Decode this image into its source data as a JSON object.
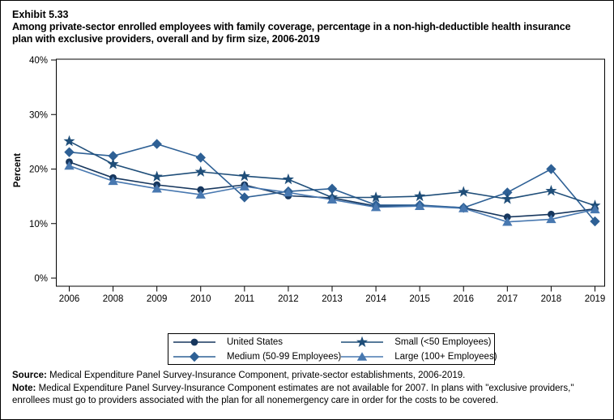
{
  "title": {
    "exhibit": "Exhibit 5.33",
    "text": "Among private-sector enrolled employees with family coverage, percentage in a non-high-deductible health insurance plan with exclusive providers, overall and by firm size, 2006-2019"
  },
  "chart_data": {
    "type": "line",
    "title": "Exhibit 5.33",
    "subtitle": "Among private-sector enrolled employees with family coverage, percentage in a non-high-deductible health insurance plan with exclusive providers, overall and by firm size, 2006-2019",
    "xlabel": "",
    "ylabel": "Percent",
    "ylim": [
      0,
      40
    ],
    "yticks": [
      0,
      10,
      20,
      30,
      40
    ],
    "ytick_suffix": "%",
    "grid": false,
    "legend_position": "bottom",
    "categories": [
      "2006",
      "2008",
      "2009",
      "2010",
      "2011",
      "2012",
      "2013",
      "2014",
      "2015",
      "2016",
      "2017",
      "2018",
      "2019"
    ],
    "series": [
      {
        "name": "United States",
        "marker": "circle",
        "color": "#17375E",
        "values": [
          21.3,
          18.4,
          17.1,
          16.2,
          17.1,
          15.1,
          14.7,
          13.2,
          13.3,
          12.9,
          11.2,
          11.7,
          12.7
        ]
      },
      {
        "name": "Medium (50-99 Employees)",
        "marker": "diamond",
        "color": "#2E6095",
        "values": [
          23.1,
          22.4,
          24.6,
          22.1,
          14.8,
          15.9,
          16.4,
          13.4,
          13.4,
          12.9,
          15.7,
          20.0,
          10.4
        ]
      },
      {
        "name": "Small (<50 Employees)",
        "marker": "star",
        "color": "#1F4E79",
        "values": [
          25.1,
          20.9,
          18.6,
          19.5,
          18.7,
          18.1,
          14.8,
          14.8,
          15.0,
          15.8,
          14.5,
          16.0,
          13.3
        ]
      },
      {
        "name": "Large (100+ Employees)",
        "marker": "triangle",
        "color": "#4878B0",
        "values": [
          20.6,
          17.8,
          16.4,
          15.3,
          16.8,
          15.7,
          14.4,
          13.0,
          13.2,
          12.8,
          10.3,
          10.8,
          12.6
        ]
      }
    ],
    "legend_order": [
      "United States",
      "Small (<50 Employees)",
      "Medium (50-99 Employees)",
      "Large (100+ Employees)"
    ]
  },
  "footer": {
    "source_label": "Source:",
    "source_text": " Medical Expenditure Panel Survey-Insurance Component, private-sector establishments, 2006-2019.",
    "note_label": "Note:",
    "note_text": " Medical Expenditure Panel Survey-Insurance Component estimates are not available for 2007. In plans with \"exclusive providers,\" enrollees must go to providers associated with the plan for all nonemergency care in order for the costs to be covered."
  }
}
